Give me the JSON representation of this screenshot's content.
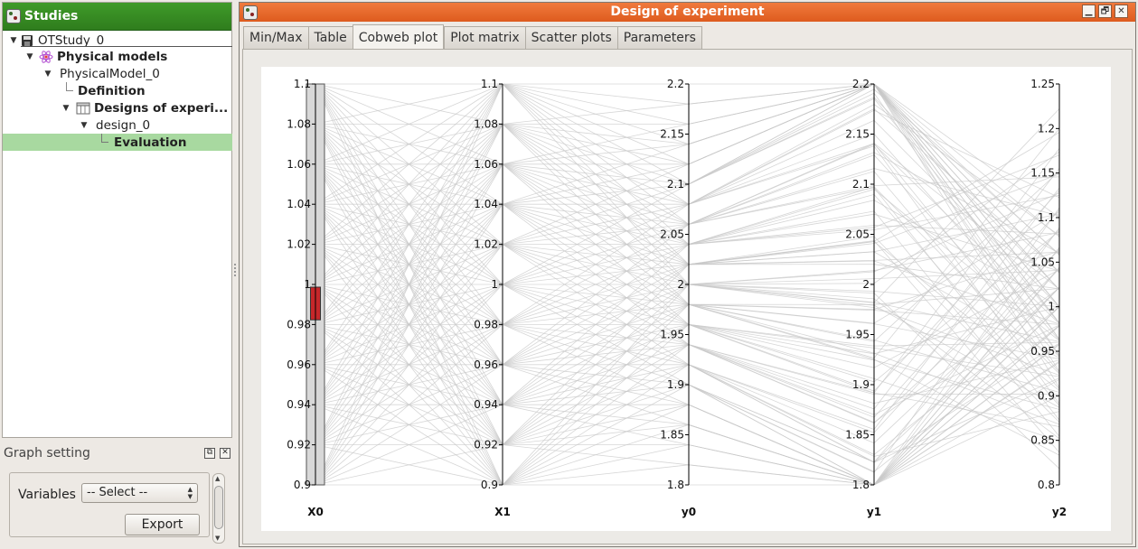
{
  "studies_panel": {
    "title": "Studies",
    "tree": {
      "study": "OTStudy_0",
      "physical_models": "Physical models",
      "model": "PhysicalModel_0",
      "definition": "Definition",
      "designs": "Designs of experi...",
      "design": "design_0",
      "evaluation": "Evaluation"
    }
  },
  "graph_setting": {
    "title": "Graph setting",
    "variables_label": "Variables",
    "variables_select_value": "-- Select --",
    "export_label": "Export"
  },
  "window": {
    "title": "Design of experiment",
    "controls": {
      "minimize": "▁",
      "restore": "🗗",
      "close": "✕"
    }
  },
  "tabs": [
    "Min/Max",
    "Table",
    "Cobweb plot",
    "Plot matrix",
    "Scatter plots",
    "Parameters"
  ],
  "active_tab": "Cobweb plot",
  "colors": {
    "selected_line": "#e32626",
    "background_line": "#c8c8c8",
    "selection_marker": "#c6272a",
    "active_tree_row": "#a8d9a0"
  },
  "chart_data": {
    "type": "parallel_coordinates",
    "axes": [
      {
        "name": "X0",
        "range": [
          0.9,
          1.1
        ],
        "ticks": [
          "1.1",
          "1.08",
          "1.06",
          "1.04",
          "1.02",
          "1",
          "0.98",
          "0.96",
          "0.94",
          "0.92",
          "0.9"
        ],
        "tick_values": [
          1.1,
          1.08,
          1.06,
          1.04,
          1.02,
          1.0,
          0.98,
          0.96,
          0.94,
          0.92,
          0.9
        ]
      },
      {
        "name": "X1",
        "range": [
          0.9,
          1.1
        ],
        "ticks": [
          "1.1",
          "1.08",
          "1.06",
          "1.04",
          "1.02",
          "1",
          "0.98",
          "0.96",
          "0.94",
          "0.92",
          "0.9"
        ],
        "tick_values": [
          1.1,
          1.08,
          1.06,
          1.04,
          1.02,
          1.0,
          0.98,
          0.96,
          0.94,
          0.92,
          0.9
        ]
      },
      {
        "name": "y0",
        "range": [
          1.8,
          2.2
        ],
        "ticks": [
          "2.2",
          "2.15",
          "2.1",
          "2.05",
          "2",
          "1.95",
          "1.9",
          "1.85",
          "1.8"
        ],
        "tick_values": [
          2.2,
          2.15,
          2.1,
          2.05,
          2.0,
          1.95,
          1.9,
          1.85,
          1.8
        ]
      },
      {
        "name": "y1",
        "range": [
          1.8,
          2.2
        ],
        "ticks": [
          "2.2",
          "2.15",
          "2.1",
          "2.05",
          "2",
          "1.95",
          "1.9",
          "1.85",
          "1.8"
        ],
        "tick_values": [
          2.2,
          2.15,
          2.1,
          2.05,
          2.0,
          1.95,
          1.9,
          1.85,
          1.8
        ]
      },
      {
        "name": "y2",
        "range": [
          0.8,
          1.25
        ],
        "ticks": [
          "1.25",
          "1.2",
          "1.15",
          "1.1",
          "1.05",
          "1",
          "0.95",
          "0.9",
          "0.85",
          "0.8"
        ],
        "tick_values": [
          1.25,
          1.2,
          1.15,
          1.1,
          1.05,
          1.0,
          0.95,
          0.9,
          0.85,
          0.8
        ]
      }
    ],
    "grid_levels_x": [
      0.9,
      0.92,
      0.94,
      0.96,
      0.98,
      1.0,
      1.02,
      1.04,
      1.06,
      1.08,
      1.1
    ],
    "selection": {
      "axis": "X0",
      "range": [
        0.99,
        1.0
      ]
    },
    "selected_x0": 0.99
  }
}
